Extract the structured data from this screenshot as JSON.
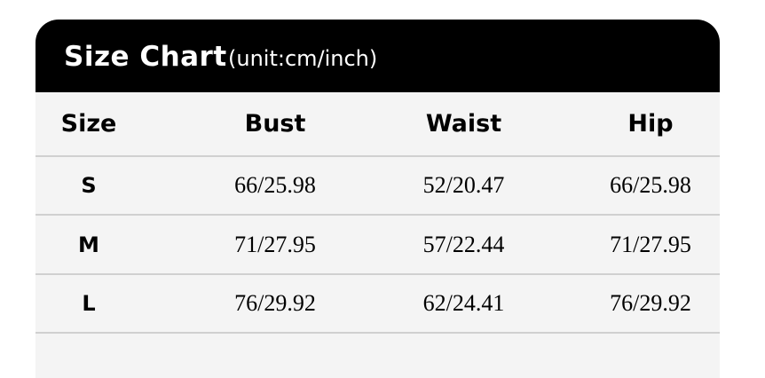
{
  "header": {
    "title": "Size Chart",
    "unit": "(unit:cm/inch)"
  },
  "columns": [
    "Size",
    "Bust",
    "Waist",
    "Hip"
  ],
  "rows": [
    [
      "S",
      "66/25.98",
      "52/20.47",
      "66/25.98"
    ],
    [
      "M",
      "71/27.95",
      "57/22.44",
      "71/27.95"
    ],
    [
      "L",
      "76/29.92",
      "62/24.41",
      "76/29.92"
    ]
  ],
  "colors": {
    "header_bg": "#000000",
    "table_bg": "#f4f4f4",
    "divider": "#d0d0d0"
  }
}
